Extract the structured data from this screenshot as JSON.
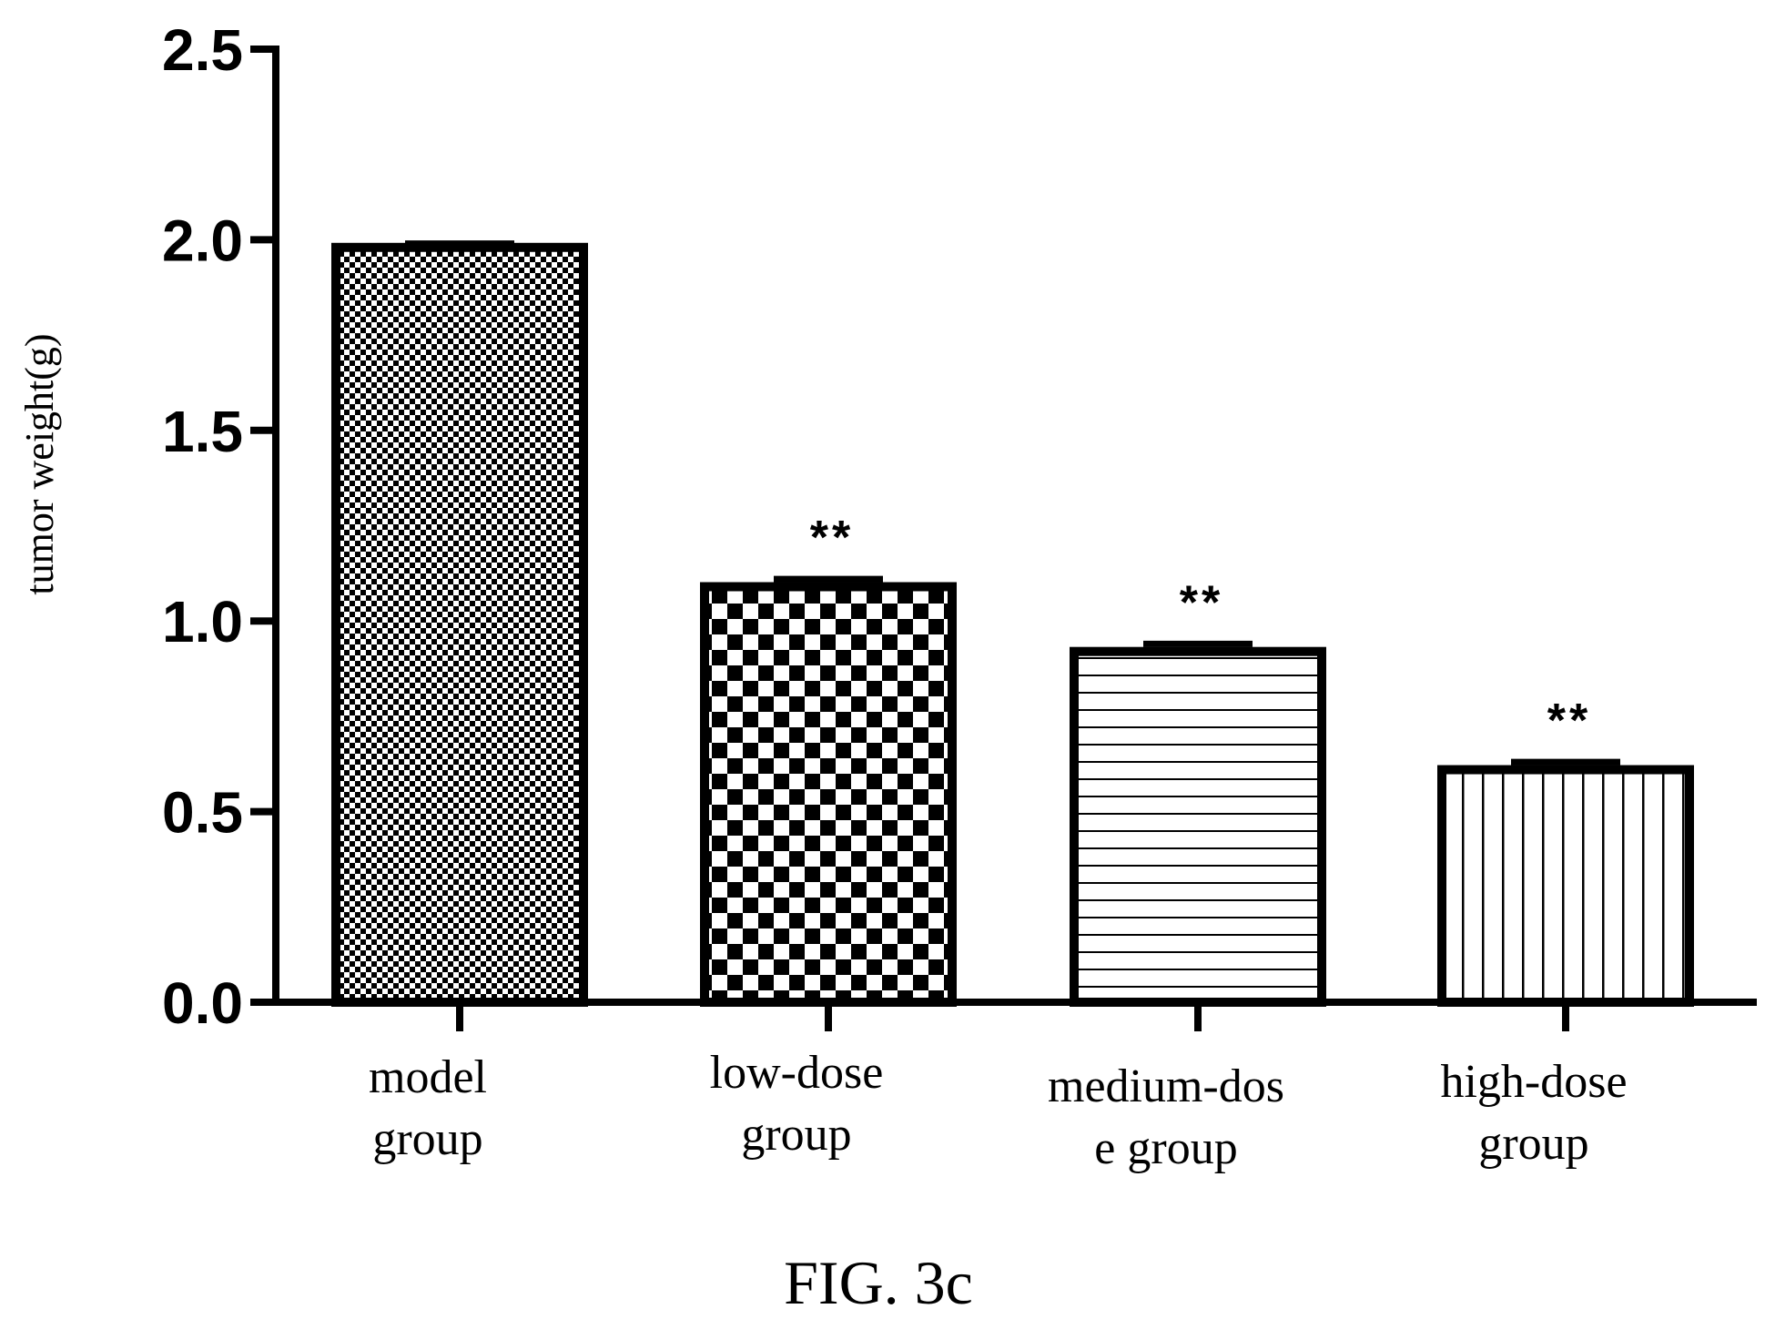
{
  "chart_data": {
    "type": "bar",
    "categories": [
      [
        "model",
        "group"
      ],
      [
        "low-dose",
        "group"
      ],
      [
        "medium-dos",
        "e group"
      ],
      [
        "high-dose",
        "group"
      ]
    ],
    "values": [
      1.98,
      1.09,
      0.92,
      0.61
    ],
    "error": [
      0.01,
      0.02,
      0.02,
      0.02
    ],
    "annotations": [
      "",
      "**",
      "**",
      "**"
    ],
    "patterns": [
      "fine-checker",
      "coarse-checker",
      "horizontal-lines",
      "vertical-lines"
    ],
    "ylabel": "tumor weight(g)",
    "xlabel": "",
    "ylim": [
      0,
      2.5
    ],
    "yticks": [
      "0.0",
      "0.5",
      "1.0",
      "1.5",
      "2.0",
      "2.5"
    ],
    "grid": false
  },
  "caption": "FIG. 3c"
}
